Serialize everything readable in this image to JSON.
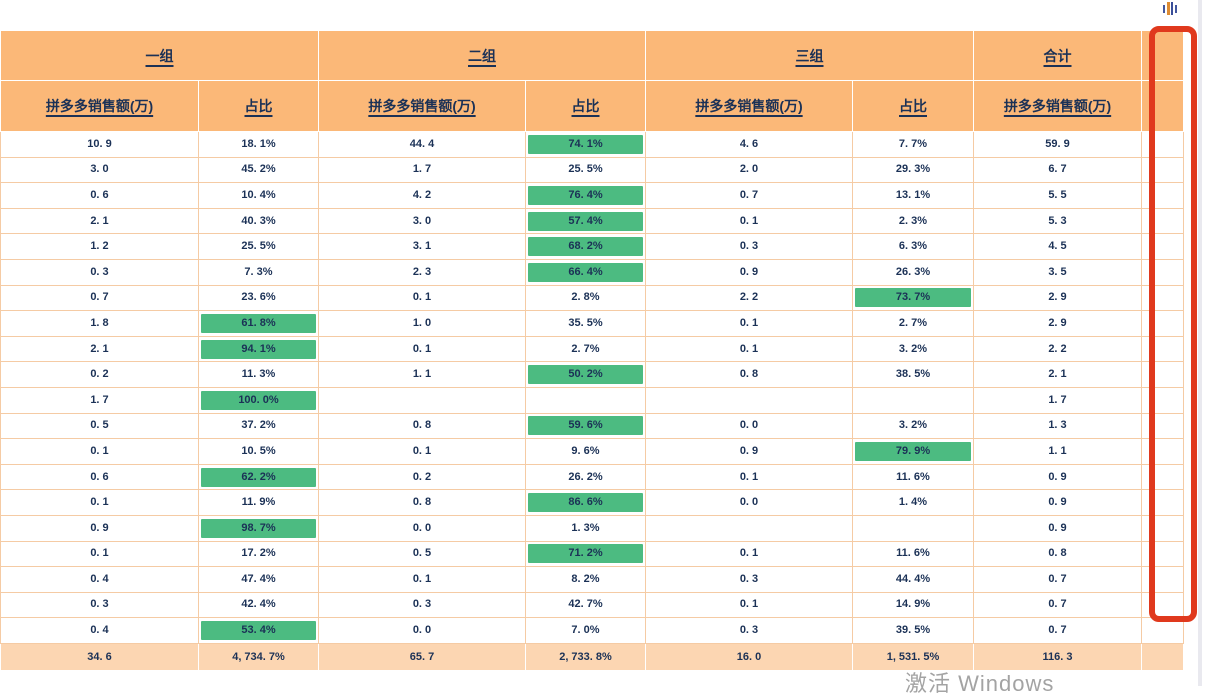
{
  "watermark": {
    "text": "激活 Windows"
  },
  "icons": {
    "equalizer": "equalizer-bars-icon"
  },
  "annotation": {
    "type": "red-highlight-box",
    "color": "#e0391d"
  },
  "colors": {
    "header_bg": "#fbb878",
    "total_bg": "#fcd6b2",
    "highlight_green": "#4cbb81",
    "grid_border": "#f5cba4",
    "text_navy": "#1b3156",
    "annotation_red": "#e0391d"
  },
  "table": {
    "group_headers": [
      {
        "label": "一组",
        "span": 2
      },
      {
        "label": "二组",
        "span": 2
      },
      {
        "label": "三组",
        "span": 2
      },
      {
        "label": "合计",
        "span": 1
      },
      {
        "label": "",
        "span": 1
      }
    ],
    "sub_headers": [
      "拼多多销售额(万)",
      "占比",
      "拼多多销售额(万)",
      "占比",
      "拼多多销售额(万)",
      "占比",
      "拼多多销售额(万)",
      ""
    ],
    "rows": [
      {
        "cells": [
          "10. 9",
          "18. 1%",
          "44. 4",
          "74. 1%",
          "4. 6",
          "7. 7%",
          "59. 9"
        ],
        "green": [
          3
        ]
      },
      {
        "cells": [
          "3. 0",
          "45. 2%",
          "1. 7",
          "25. 5%",
          "2. 0",
          "29. 3%",
          "6. 7"
        ],
        "green": []
      },
      {
        "cells": [
          "0. 6",
          "10. 4%",
          "4. 2",
          "76. 4%",
          "0. 7",
          "13. 1%",
          "5. 5"
        ],
        "green": [
          3
        ]
      },
      {
        "cells": [
          "2. 1",
          "40. 3%",
          "3. 0",
          "57. 4%",
          "0. 1",
          "2. 3%",
          "5. 3"
        ],
        "green": [
          3
        ]
      },
      {
        "cells": [
          "1. 2",
          "25. 5%",
          "3. 1",
          "68. 2%",
          "0. 3",
          "6. 3%",
          "4. 5"
        ],
        "green": [
          3
        ]
      },
      {
        "cells": [
          "0. 3",
          "7. 3%",
          "2. 3",
          "66. 4%",
          "0. 9",
          "26. 3%",
          "3. 5"
        ],
        "green": [
          3
        ]
      },
      {
        "cells": [
          "0. 7",
          "23. 6%",
          "0. 1",
          "2. 8%",
          "2. 2",
          "73. 7%",
          "2. 9"
        ],
        "green": [
          5
        ]
      },
      {
        "cells": [
          "1. 8",
          "61. 8%",
          "1. 0",
          "35. 5%",
          "0. 1",
          "2. 7%",
          "2. 9"
        ],
        "green": [
          1
        ]
      },
      {
        "cells": [
          "2. 1",
          "94. 1%",
          "0. 1",
          "2. 7%",
          "0. 1",
          "3. 2%",
          "2. 2"
        ],
        "green": [
          1
        ]
      },
      {
        "cells": [
          "0. 2",
          "11. 3%",
          "1. 1",
          "50. 2%",
          "0. 8",
          "38. 5%",
          "2. 1"
        ],
        "green": [
          3
        ]
      },
      {
        "cells": [
          "1. 7",
          "100. 0%",
          "",
          "",
          "",
          "",
          "1. 7"
        ],
        "green": [
          1
        ]
      },
      {
        "cells": [
          "0. 5",
          "37. 2%",
          "0. 8",
          "59. 6%",
          "0. 0",
          "3. 2%",
          "1. 3"
        ],
        "green": [
          3
        ]
      },
      {
        "cells": [
          "0. 1",
          "10. 5%",
          "0. 1",
          "9. 6%",
          "0. 9",
          "79. 9%",
          "1. 1"
        ],
        "green": [
          5
        ]
      },
      {
        "cells": [
          "0. 6",
          "62. 2%",
          "0. 2",
          "26. 2%",
          "0. 1",
          "11. 6%",
          "0. 9"
        ],
        "green": [
          1
        ]
      },
      {
        "cells": [
          "0. 1",
          "11. 9%",
          "0. 8",
          "86. 6%",
          "0. 0",
          "1. 4%",
          "0. 9"
        ],
        "green": [
          3
        ]
      },
      {
        "cells": [
          "0. 9",
          "98. 7%",
          "0. 0",
          "1. 3%",
          "",
          "",
          "0. 9"
        ],
        "green": [
          1
        ]
      },
      {
        "cells": [
          "0. 1",
          "17. 2%",
          "0. 5",
          "71. 2%",
          "0. 1",
          "11. 6%",
          "0. 8"
        ],
        "green": [
          3
        ]
      },
      {
        "cells": [
          "0. 4",
          "47. 4%",
          "0. 1",
          "8. 2%",
          "0. 3",
          "44. 4%",
          "0. 7"
        ],
        "green": []
      },
      {
        "cells": [
          "0. 3",
          "42. 4%",
          "0. 3",
          "42. 7%",
          "0. 1",
          "14. 9%",
          "0. 7"
        ],
        "green": []
      },
      {
        "cells": [
          "0. 4",
          "53. 4%",
          "0. 0",
          "7. 0%",
          "0. 3",
          "39. 5%",
          "0. 7"
        ],
        "green": [
          1
        ]
      }
    ],
    "totals": [
      "34. 6",
      "4, 734. 7%",
      "65. 7",
      "2, 733. 8%",
      "16. 0",
      "1, 531. 5%",
      "116. 3"
    ]
  }
}
